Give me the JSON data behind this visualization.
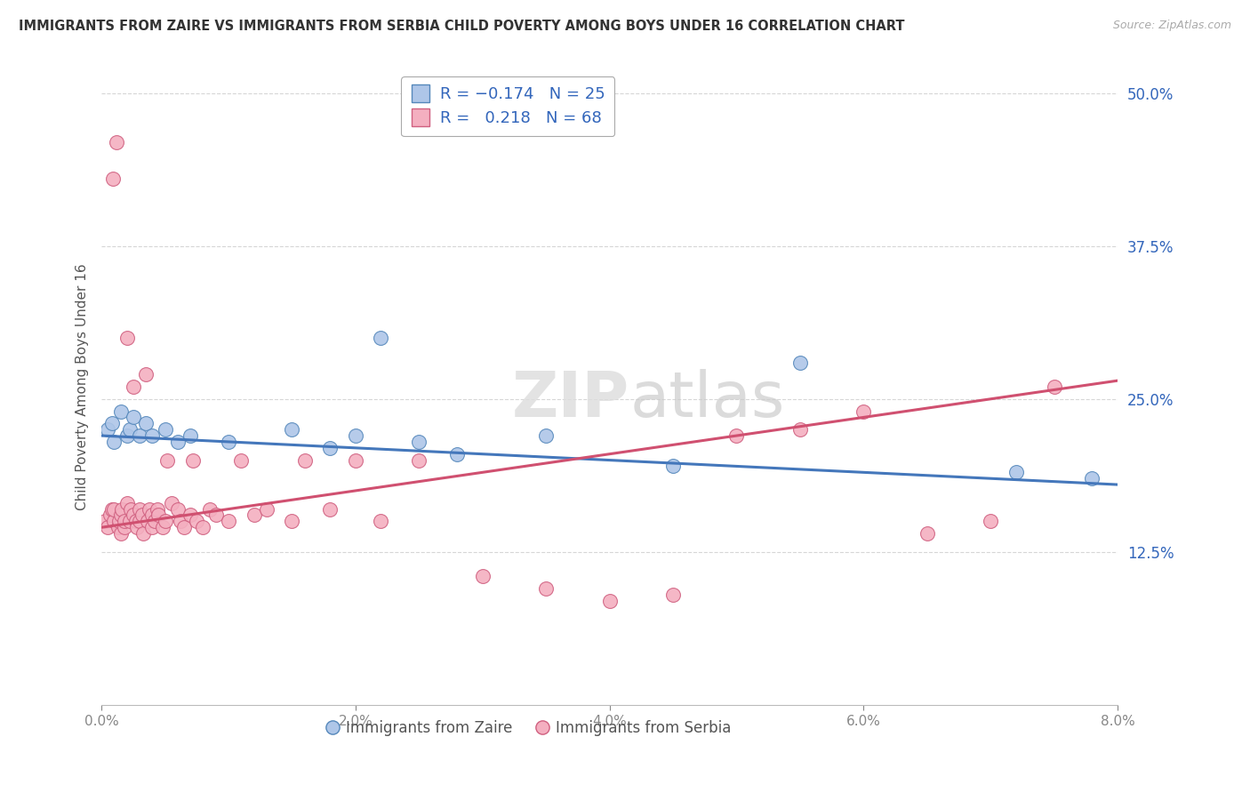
{
  "title": "IMMIGRANTS FROM ZAIRE VS IMMIGRANTS FROM SERBIA CHILD POVERTY AMONG BOYS UNDER 16 CORRELATION CHART",
  "source": "Source: ZipAtlas.com",
  "ylabel": "Child Poverty Among Boys Under 16",
  "xlim": [
    0.0,
    8.0
  ],
  "ylim": [
    0.0,
    52.0
  ],
  "yticks": [
    12.5,
    25.0,
    37.5,
    50.0
  ],
  "xticks": [
    0.0,
    2.0,
    4.0,
    6.0,
    8.0
  ],
  "zaire_color": "#aec6e8",
  "zaire_edge": "#5588bb",
  "serbia_color": "#f4afc0",
  "serbia_edge": "#d06080",
  "zaire_line_color": "#4477bb",
  "serbia_line_color": "#d05070",
  "background": "#ffffff",
  "grid_color": "#cccccc",
  "zaire_x": [
    0.05,
    0.08,
    0.1,
    0.15,
    0.2,
    0.22,
    0.25,
    0.3,
    0.35,
    0.4,
    0.5,
    0.6,
    0.7,
    1.0,
    1.5,
    1.8,
    2.0,
    2.2,
    2.5,
    2.8,
    3.5,
    4.5,
    5.5,
    7.2,
    7.8
  ],
  "zaire_y": [
    22.5,
    23.0,
    21.5,
    24.0,
    22.0,
    22.5,
    23.5,
    22.0,
    23.0,
    22.0,
    22.5,
    21.5,
    22.0,
    21.5,
    22.5,
    21.0,
    22.0,
    30.0,
    21.5,
    20.5,
    22.0,
    19.5,
    28.0,
    19.0,
    18.5
  ],
  "serbia_x": [
    0.03,
    0.05,
    0.07,
    0.08,
    0.09,
    0.1,
    0.1,
    0.12,
    0.13,
    0.14,
    0.15,
    0.15,
    0.16,
    0.18,
    0.18,
    0.2,
    0.2,
    0.22,
    0.23,
    0.25,
    0.25,
    0.27,
    0.28,
    0.3,
    0.3,
    0.32,
    0.33,
    0.35,
    0.36,
    0.38,
    0.4,
    0.4,
    0.42,
    0.44,
    0.45,
    0.48,
    0.5,
    0.52,
    0.55,
    0.6,
    0.62,
    0.65,
    0.7,
    0.72,
    0.75,
    0.8,
    0.85,
    0.9,
    1.0,
    1.1,
    1.2,
    1.3,
    1.5,
    1.6,
    1.8,
    2.0,
    2.2,
    2.5,
    3.0,
    3.5,
    4.0,
    4.5,
    5.0,
    5.5,
    6.0,
    6.5,
    7.0,
    7.5
  ],
  "serbia_y": [
    15.0,
    14.5,
    15.5,
    16.0,
    43.0,
    15.0,
    16.0,
    46.0,
    14.5,
    15.0,
    14.0,
    15.5,
    16.0,
    14.5,
    15.0,
    16.5,
    30.0,
    15.0,
    16.0,
    15.5,
    26.0,
    15.0,
    14.5,
    15.0,
    16.0,
    15.5,
    14.0,
    27.0,
    15.0,
    16.0,
    14.5,
    15.5,
    15.0,
    16.0,
    15.5,
    14.5,
    15.0,
    20.0,
    16.5,
    16.0,
    15.0,
    14.5,
    15.5,
    20.0,
    15.0,
    14.5,
    16.0,
    15.5,
    15.0,
    20.0,
    15.5,
    16.0,
    15.0,
    20.0,
    16.0,
    20.0,
    15.0,
    20.0,
    10.5,
    9.5,
    8.5,
    9.0,
    22.0,
    22.5,
    24.0,
    14.0,
    15.0,
    26.0
  ]
}
